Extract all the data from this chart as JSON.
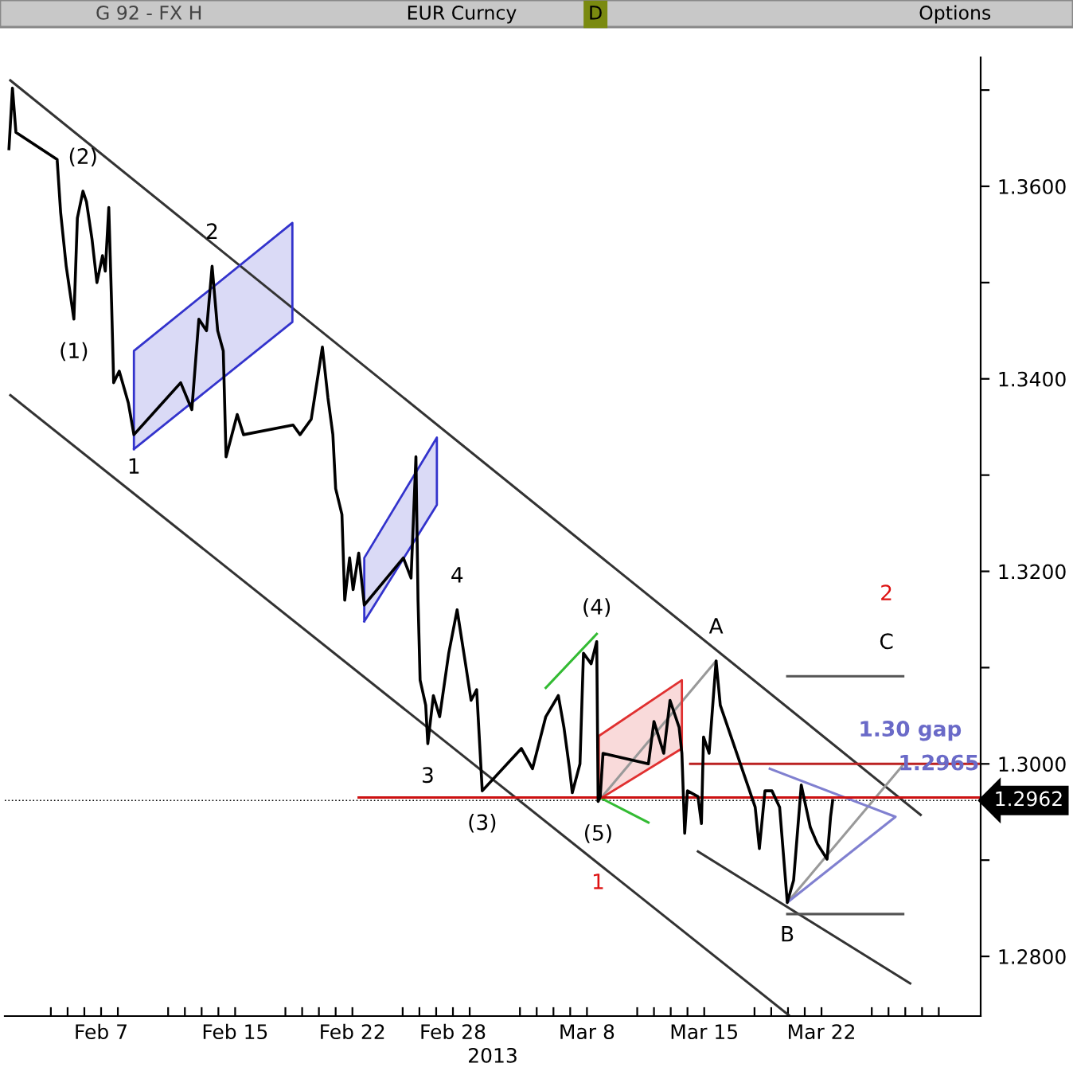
{
  "chart_data": {
    "type": "line",
    "title": "G 92 - FX H",
    "subtitle": "EUR Curncy",
    "xlabel": "2013",
    "xlim": [
      "2013-02-01T06:00",
      "2013-03-31T12:00"
    ],
    "ylim": [
      1.2738,
      1.3734
    ],
    "xticks": [
      {
        "value": "2013-02-04",
        "label": null
      },
      {
        "value": "2013-02-05",
        "label": null
      },
      {
        "value": "2013-02-06",
        "label": null
      },
      {
        "value": "2013-02-07",
        "label": "Feb 7"
      },
      {
        "value": "2013-02-08",
        "label": null
      },
      {
        "value": "2013-02-11",
        "label": null
      },
      {
        "value": "2013-02-12",
        "label": null
      },
      {
        "value": "2013-02-13",
        "label": null
      },
      {
        "value": "2013-02-14",
        "label": null
      },
      {
        "value": "2013-02-15",
        "label": "Feb 15"
      },
      {
        "value": "2013-02-18",
        "label": null
      },
      {
        "value": "2013-02-19",
        "label": null
      },
      {
        "value": "2013-02-20",
        "label": null
      },
      {
        "value": "2013-02-21",
        "label": null
      },
      {
        "value": "2013-02-22",
        "label": "Feb 22"
      },
      {
        "value": "2013-02-25",
        "label": null
      },
      {
        "value": "2013-02-26",
        "label": null
      },
      {
        "value": "2013-02-27",
        "label": null
      },
      {
        "value": "2013-02-28",
        "label": "Feb 28"
      },
      {
        "value": "2013-03-01",
        "label": null
      },
      {
        "value": "2013-03-04",
        "label": null
      },
      {
        "value": "2013-03-05",
        "label": null
      },
      {
        "value": "2013-03-06",
        "label": null
      },
      {
        "value": "2013-03-07",
        "label": null
      },
      {
        "value": "2013-03-08",
        "label": "Mar 8"
      },
      {
        "value": "2013-03-11",
        "label": null
      },
      {
        "value": "2013-03-12",
        "label": null
      },
      {
        "value": "2013-03-13",
        "label": null
      },
      {
        "value": "2013-03-14",
        "label": null
      },
      {
        "value": "2013-03-15",
        "label": "Mar 15"
      },
      {
        "value": "2013-03-18",
        "label": null
      },
      {
        "value": "2013-03-19",
        "label": null
      },
      {
        "value": "2013-03-20",
        "label": null
      },
      {
        "value": "2013-03-21",
        "label": null
      },
      {
        "value": "2013-03-22",
        "label": "Mar 22"
      },
      {
        "value": "2013-03-25",
        "label": null
      },
      {
        "value": "2013-03-26",
        "label": null
      },
      {
        "value": "2013-03-27",
        "label": null
      },
      {
        "value": "2013-03-28",
        "label": null
      },
      {
        "value": "2013-03-29",
        "label": null
      }
    ],
    "yticks": [
      {
        "value": 1.28,
        "label": "1.2800"
      },
      {
        "value": 1.29,
        "label": null
      },
      {
        "value": 1.3,
        "label": "1.3000"
      },
      {
        "value": 1.31,
        "label": null
      },
      {
        "value": 1.32,
        "label": "1.3200"
      },
      {
        "value": 1.33,
        "label": null
      },
      {
        "value": 1.34,
        "label": "1.3400"
      },
      {
        "value": 1.35,
        "label": null
      },
      {
        "value": 1.36,
        "label": "1.3600"
      },
      {
        "value": 1.37,
        "label": null
      }
    ],
    "series": [
      {
        "color": "#000000",
        "x": [
          "2013-02-01T12:00",
          "2013-02-01T17:00",
          "2013-02-01T22:00",
          "2013-02-04T09:00",
          "2013-02-04T14:00",
          "2013-02-04T22:00",
          "2013-02-05T09:00",
          "2013-02-05T14:00",
          "2013-02-05T22:00",
          "2013-02-06T03:00",
          "2013-02-06T11:00",
          "2013-02-06T18:00",
          "2013-02-07T02:00",
          "2013-02-07T06:00",
          "2013-02-07T11:00",
          "2013-02-07T15:00",
          "2013-02-07T18:00",
          "2013-02-08T02:00",
          "2013-02-08T15:00",
          "2013-02-08T23:00",
          "2013-02-11T18:00",
          "2013-02-12T10:00",
          "2013-02-12T20:00",
          "2013-02-13T07:00",
          "2013-02-13T15:00",
          "2013-02-13T23:00",
          "2013-02-14T07:00",
          "2013-02-14T11:00",
          "2013-02-15T03:00",
          "2013-02-15T12:00",
          "2013-02-18T11:00",
          "2013-02-18T21:00",
          "2013-02-19T13:00",
          "2013-02-20T05:00",
          "2013-02-20T13:00",
          "2013-02-20T20:00",
          "2013-02-21T00:00",
          "2013-02-21T09:00",
          "2013-02-21T13:00",
          "2013-02-21T20:00",
          "2013-02-22T01:00",
          "2013-02-22T09:00",
          "2013-02-22T17:00",
          "2013-02-25T01:00",
          "2013-02-25T12:00",
          "2013-02-25T19:00",
          "2013-02-25T22:00",
          "2013-02-26T01:00",
          "2013-02-26T09:00",
          "2013-02-26T12:00",
          "2013-02-26T20:00",
          "2013-02-27T05:00",
          "2013-02-27T18:00",
          "2013-02-28T06:00",
          "2013-02-28T18:00",
          "2013-03-01T02:00",
          "2013-03-01T10:00",
          "2013-03-01T18:00",
          "2013-03-04T02:00",
          "2013-03-04T18:00",
          "2013-03-05T13:00",
          "2013-03-06T07:00",
          "2013-03-06T15:00",
          "2013-03-06T23:00",
          "2013-03-07T03:00",
          "2013-03-07T14:00",
          "2013-03-07T19:00",
          "2013-03-08T06:00",
          "2013-03-08T14:00",
          "2013-03-08T16:00",
          "2013-03-08T19:00",
          "2013-03-08T23:00",
          "2013-03-11T16:00",
          "2013-03-12T00:00",
          "2013-03-12T14:00",
          "2013-03-12T23:00",
          "2013-03-13T12:00",
          "2013-03-13T16:00",
          "2013-03-13T20:00",
          "2013-03-14T00:00",
          "2013-03-14T15:00",
          "2013-03-14T20:00",
          "2013-03-14T23:00",
          "2013-03-15T07:00",
          "2013-03-15T17:00",
          "2013-03-15T23:00",
          "2013-03-18T01:00",
          "2013-03-18T07:00",
          "2013-03-18T15:00",
          "2013-03-19T01:00",
          "2013-03-19T12:00",
          "2013-03-19T23:00",
          "2013-03-20T08:00",
          "2013-03-20T19:00",
          "2013-03-21T08:00",
          "2013-03-21T18:00",
          "2013-03-22T08:00",
          "2013-03-22T13:00",
          "2013-03-22T16:00"
        ],
        "values": [
          1.3639,
          1.3702,
          1.3656,
          1.3628,
          1.3573,
          1.3517,
          1.3462,
          1.3567,
          1.3595,
          1.3584,
          1.3545,
          1.35,
          1.3528,
          1.3512,
          1.3578,
          1.3479,
          1.3396,
          1.3408,
          1.3375,
          1.3342,
          1.3396,
          1.3368,
          1.3462,
          1.345,
          1.3517,
          1.345,
          1.3429,
          1.3319,
          1.3363,
          1.3342,
          1.3352,
          1.3342,
          1.3358,
          1.3433,
          1.338,
          1.3342,
          1.3286,
          1.3259,
          1.317,
          1.3214,
          1.3181,
          1.3219,
          1.3165,
          1.3214,
          1.3193,
          1.3319,
          1.317,
          1.3087,
          1.3061,
          1.3021,
          1.3071,
          1.3049,
          1.3115,
          1.316,
          1.3104,
          1.3066,
          1.3077,
          1.2972,
          1.3016,
          1.2995,
          1.3049,
          1.3071,
          1.3038,
          1.2995,
          1.297,
          1.3,
          1.3115,
          1.3104,
          1.3127,
          1.2961,
          1.2966,
          1.3011,
          1.3,
          1.3044,
          1.3011,
          1.3066,
          1.3038,
          1.3011,
          1.2928,
          1.2972,
          1.2966,
          1.2938,
          1.3028,
          1.3011,
          1.3107,
          1.3061,
          1.2955,
          1.2912,
          1.2972,
          1.2972,
          1.2955,
          1.2856,
          1.2879,
          1.2978,
          1.2934,
          1.2917,
          1.2901,
          1.2945,
          1.2962
        ]
      },
      {
        "type": "line",
        "color": "#333333",
        "x": [
          "2013-02-01T14:00",
          "2013-03-27T22:00"
        ],
        "values": [
          1.371,
          1.2947
        ]
      },
      {
        "type": "line",
        "color": "#333333",
        "x": [
          "2013-02-01T14:00",
          "2013-03-20T01:00"
        ],
        "values": [
          1.3383,
          1.2739
        ]
      },
      {
        "type": "line",
        "color": "#333333",
        "x": [
          "2013-03-14T15:00",
          "2013-03-27T07:00"
        ],
        "values": [
          1.2909,
          1.2772
        ]
      },
      {
        "type": "line",
        "color": "#555555",
        "x": [
          "2013-03-19T23:00",
          "2013-03-26T21:00"
        ],
        "values": [
          1.2844,
          1.2844
        ]
      },
      {
        "type": "line",
        "color": "#555555",
        "x": [
          "2013-03-19T23:00",
          "2013-03-26T21:00"
        ],
        "values": [
          1.3091,
          1.3091
        ]
      },
      {
        "type": "line",
        "color": "#999999",
        "x": [
          "2013-03-08T16:00",
          "2013-03-15T17:00"
        ],
        "values": [
          1.2961,
          1.3107
        ]
      },
      {
        "type": "line",
        "color": "#999999",
        "x": [
          "2013-03-19T23:00",
          "2013-03-26T21:00"
        ],
        "values": [
          1.2856,
          1.2999
        ]
      },
      {
        "type": "line",
        "color": "#8080d0",
        "x": [
          "2013-03-18T22:00",
          "2013-03-26T10:00",
          "2013-03-19T23:00"
        ],
        "values": [
          1.2995,
          1.2945,
          1.2856
        ]
      },
      {
        "type": "area",
        "color": "#3333cc",
        "x": [
          "2013-02-08T23:00",
          "2013-02-08T23:00",
          "2013-02-18T10:00",
          "2013-02-18T10:00",
          "2013-02-08T23:00"
        ],
        "values": [
          1.3327,
          1.3429,
          1.3562,
          1.3459,
          1.3327
        ]
      },
      {
        "type": "area",
        "color": "#3333cc",
        "x": [
          "2013-02-22T17:00",
          "2013-02-22T17:00",
          "2013-02-27T01:00",
          "2013-02-27T01:00",
          "2013-02-22T17:00"
        ],
        "values": [
          1.3148,
          1.3214,
          1.3339,
          1.3269,
          1.3148
        ]
      },
      {
        "type": "area",
        "color": "#e03030",
        "x": [
          "2013-03-08T17:00",
          "2013-03-08T17:00",
          "2013-03-13T16:00",
          "2013-03-13T16:00",
          "2013-03-08T17:00"
        ],
        "values": [
          1.2963,
          1.3029,
          1.3087,
          1.3016,
          1.2963
        ]
      },
      {
        "type": "line",
        "color": "#33bb33",
        "x": [
          "2013-03-05T13:00",
          "2013-03-08T14:00"
        ],
        "values": [
          1.3079,
          1.3135
        ]
      },
      {
        "type": "line",
        "color": "#33bb33",
        "x": [
          "2013-03-08T16:00",
          "2013-03-11T16:00"
        ],
        "values": [
          1.2966,
          1.2939
        ]
      },
      {
        "type": "line",
        "color": "#cc1111",
        "x": [
          "2013-02-22T09:00",
          "2013-03-31T12:00"
        ],
        "values": [
          1.2965,
          1.2965
        ]
      },
      {
        "type": "line",
        "color": "#bb2222",
        "x": [
          "2013-03-14T04:00",
          "2013-03-31T12:00"
        ],
        "values": [
          1.3,
          1.3
        ]
      }
    ],
    "ref_lines": [
      {
        "axis": "y",
        "value": 1.2962,
        "label": "1.2962",
        "color": "#000000",
        "line_style": "dotted"
      }
    ],
    "annotations": [
      "D",
      "Options",
      {
        "text": "(1)",
        "x": "2013-02-05T09:00",
        "y": 1.3462
      },
      {
        "text": "(2)",
        "x": "2013-02-05T22:00",
        "y": 1.3595
      },
      {
        "text": "2",
        "x": "2013-02-13T15:00",
        "y": 1.3517
      },
      {
        "text": "1",
        "x": "2013-02-08T23:00",
        "y": 1.3342
      },
      {
        "text": "3",
        "x": "2013-02-26T12:00",
        "y": 1.3021
      },
      {
        "text": "4",
        "x": "2013-02-28T06:00",
        "y": 1.316
      },
      {
        "text": "(3)",
        "x": "2013-03-01T18:00",
        "y": 1.2972
      },
      {
        "text": "(4)",
        "x": "2013-03-08T14:00",
        "y": 1.3127
      },
      {
        "text": "(5)",
        "x": "2013-03-08T16:00",
        "y": 1.2961
      },
      "1",
      {
        "text": "A",
        "x": "2013-03-15T17:00",
        "y": 1.3107
      },
      {
        "text": "B",
        "x": "2013-03-19T23:00",
        "y": 1.2856
      },
      {
        "text": "C",
        "x": "2013-03-25T21:00",
        "y": 1.3091
      },
      "2",
      {
        "text": "1.30 gap",
        "x": "2013-03-27T07:00",
        "y": 1.3
      },
      {
        "text": "1.2965",
        "x": "2013-03-29T00:00",
        "y": 1.2965
      }
    ]
  }
}
